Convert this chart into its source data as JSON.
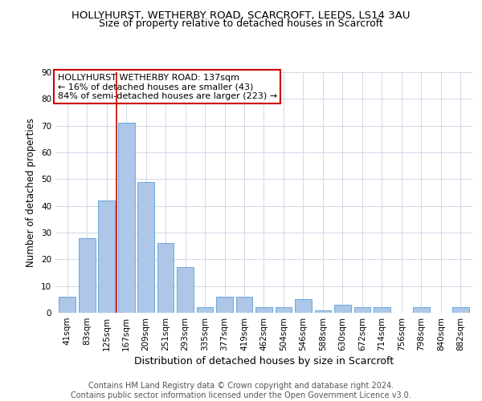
{
  "title": "HOLLYHURST, WETHERBY ROAD, SCARCROFT, LEEDS, LS14 3AU",
  "subtitle": "Size of property relative to detached houses in Scarcroft",
  "xlabel": "Distribution of detached houses by size in Scarcroft",
  "ylabel": "Number of detached properties",
  "bar_labels": [
    "41sqm",
    "83sqm",
    "125sqm",
    "167sqm",
    "209sqm",
    "251sqm",
    "293sqm",
    "335sqm",
    "377sqm",
    "419sqm",
    "462sqm",
    "504sqm",
    "546sqm",
    "588sqm",
    "630sqm",
    "672sqm",
    "714sqm",
    "756sqm",
    "798sqm",
    "840sqm",
    "882sqm"
  ],
  "bar_values": [
    6,
    28,
    42,
    71,
    49,
    26,
    17,
    2,
    6,
    6,
    2,
    2,
    5,
    1,
    3,
    2,
    2,
    0,
    2,
    0,
    2
  ],
  "bar_color": "#aec6e8",
  "bar_edge_color": "#5a9fd4",
  "vline_x": 2.5,
  "vline_color": "#cc0000",
  "annotation_box_text": "HOLLYHURST WETHERBY ROAD: 137sqm\n← 16% of detached houses are smaller (43)\n84% of semi-detached houses are larger (223) →",
  "annotation_box_color": "#cc0000",
  "ylim": [
    0,
    90
  ],
  "yticks": [
    0,
    10,
    20,
    30,
    40,
    50,
    60,
    70,
    80,
    90
  ],
  "background_color": "#ffffff",
  "grid_color": "#d0d8e8",
  "footer_text": "Contains HM Land Registry data © Crown copyright and database right 2024.\nContains public sector information licensed under the Open Government Licence v3.0.",
  "title_fontsize": 9.5,
  "subtitle_fontsize": 9,
  "xlabel_fontsize": 9,
  "ylabel_fontsize": 8.5,
  "footer_fontsize": 7,
  "tick_fontsize": 7.5,
  "annot_fontsize": 8
}
